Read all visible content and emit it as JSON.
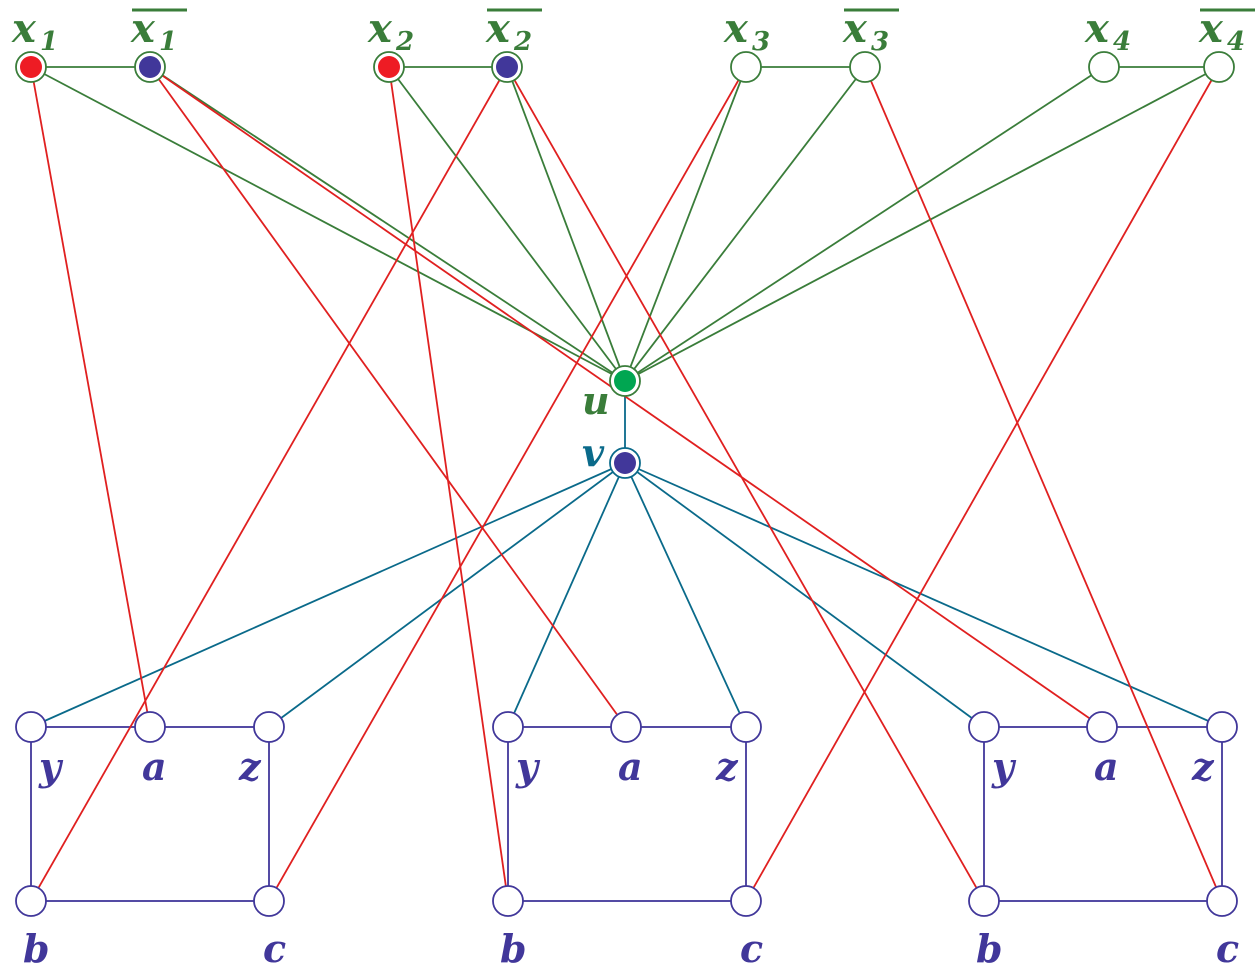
{
  "colors": {
    "green": "#3a7d3a",
    "red": "#e02020",
    "teal": "#0a6a8a",
    "navy": "#41379a",
    "u_fill": "#00a651",
    "node_red": "#ee1c24",
    "node_navy": "#41379a"
  },
  "top_vars": [
    {
      "id": "x1",
      "base": "x",
      "sub": "1",
      "negated": false,
      "filled": "red"
    },
    {
      "id": "x1n",
      "base": "x",
      "sub": "1",
      "negated": true,
      "filled": "navy"
    },
    {
      "id": "x2",
      "base": "x",
      "sub": "2",
      "negated": false,
      "filled": "red"
    },
    {
      "id": "x2n",
      "base": "x",
      "sub": "2",
      "negated": true,
      "filled": "navy"
    },
    {
      "id": "x3",
      "base": "x",
      "sub": "3",
      "negated": false,
      "filled": "none"
    },
    {
      "id": "x3n",
      "base": "x",
      "sub": "3",
      "negated": true,
      "filled": "none"
    },
    {
      "id": "x4",
      "base": "x",
      "sub": "4",
      "negated": false,
      "filled": "none"
    },
    {
      "id": "x4n",
      "base": "x",
      "sub": "4",
      "negated": true,
      "filled": "none"
    }
  ],
  "center": {
    "u_label": "u",
    "v_label": "v"
  },
  "gadgets": [
    {
      "id": "g1",
      "labels": {
        "y": "y",
        "a": "a",
        "z": "z",
        "b": "b",
        "c": "c"
      }
    },
    {
      "id": "g2",
      "labels": {
        "y": "y",
        "a": "a",
        "z": "z",
        "b": "b",
        "c": "c"
      }
    },
    {
      "id": "g3",
      "labels": {
        "y": "y",
        "a": "a",
        "z": "z",
        "b": "b",
        "c": "c"
      }
    }
  ],
  "red_edges": [
    [
      "x1",
      "g1.a"
    ],
    [
      "x1n",
      "g2.a"
    ],
    [
      "x1n",
      "g3.a"
    ],
    [
      "x2",
      "g2.b"
    ],
    [
      "x2n",
      "g1.b"
    ],
    [
      "x2n",
      "g3.b"
    ],
    [
      "x3",
      "g1.c"
    ],
    [
      "x3n",
      "g3.c"
    ],
    [
      "x4n",
      "g2.c"
    ]
  ]
}
